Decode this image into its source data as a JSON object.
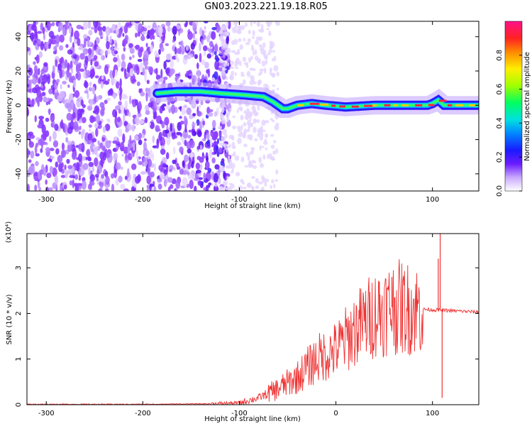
{
  "title": "GN03.2023.221.19.18.R05",
  "chart_data": [
    {
      "type": "heatmap",
      "xlabel": "Height of straight line (km)",
      "ylabel": "Frequency (Hz)",
      "xlim": [
        -320,
        148
      ],
      "ylim": [
        -50,
        49
      ],
      "xticks": [
        -300,
        -200,
        -100,
        0,
        100
      ],
      "yticks": [
        -40,
        -20,
        0,
        20,
        40
      ],
      "ridge": {
        "x": [
          -185,
          -165,
          -140,
          -120,
          -95,
          -75,
          -65,
          -55,
          -50,
          -40,
          -25,
          -10,
          10,
          40,
          70,
          95,
          100,
          106,
          112,
          148
        ],
        "y": [
          7,
          8,
          8,
          7,
          6,
          5,
          2,
          -2,
          -2,
          0,
          1,
          0,
          -1,
          0,
          0,
          0,
          1,
          3,
          0,
          0
        ]
      },
      "colorbar": {
        "label": "Normalized spectral amplitude",
        "range": [
          0,
          1
        ],
        "ticks": [
          "0.0",
          "0.2",
          "0.4",
          "0.6",
          "0.8"
        ]
      }
    },
    {
      "type": "line",
      "xlabel": "Height of straight line (km)",
      "ylabel": "SNR (10 * v/v)",
      "yscale_label": "(x10⁴)",
      "xlim": [
        -320,
        148
      ],
      "ylim": [
        0,
        3.75
      ],
      "xticks": [
        -300,
        -200,
        -100,
        0,
        100
      ],
      "yticks": [
        0,
        1,
        2,
        3
      ],
      "color": "#ee3333",
      "envelope": {
        "x": [
          -320,
          -200,
          -130,
          -100,
          -80,
          -60,
          -40,
          -20,
          0,
          20,
          40,
          60,
          80,
          100,
          148
        ],
        "y": [
          0.01,
          0.01,
          0.02,
          0.04,
          0.15,
          0.35,
          0.6,
          1.0,
          1.2,
          1.65,
          2.0,
          2.15,
          2.1,
          2.08,
          2.03
        ]
      },
      "spikes": [
        {
          "x": 45,
          "y": 2.7
        },
        {
          "x": 58,
          "y": 2.8
        },
        {
          "x": 106,
          "y": 3.2
        },
        {
          "x": 108,
          "y": 3.75
        },
        {
          "x": 110,
          "y": 0.15
        }
      ]
    }
  ]
}
